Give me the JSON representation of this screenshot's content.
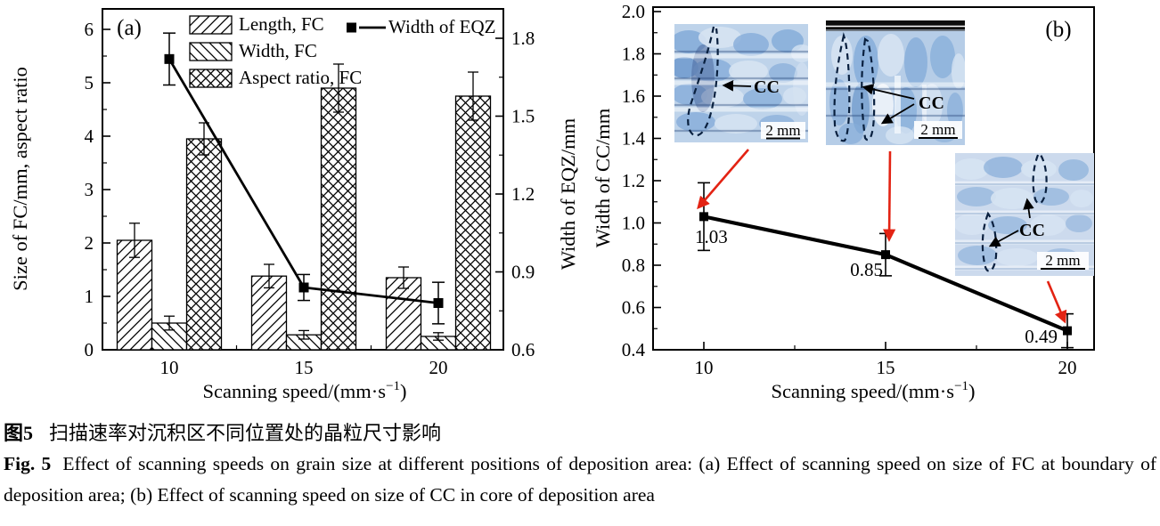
{
  "figure": {
    "caption_cn": {
      "tag": "图5",
      "text": "扫描速率对沉积区不同位置处的晶粒尺寸影响"
    },
    "caption_en": {
      "tag": "Fig. 5",
      "text": "Effect of scanning speeds on grain size at different positions of deposition area: (a) Effect of scanning speed on size of FC at boundary of deposition area; (b) Effect of scanning speed on size of CC in core of deposition area"
    }
  },
  "colors": {
    "ink": "#000000",
    "accent_red": "#e32313",
    "inset_blue_bg": "#bed3ea",
    "inset_blue_mid": "#86add9",
    "inset_blue_dark": "#5d8dc7",
    "inset_blue_light": "#d6e3f2",
    "inset_white": "#f6f9fd",
    "inset_deep": "#48639a",
    "dash_ink": "#09203f"
  },
  "chart_data": [
    {
      "id": "a",
      "panel_label": "(a)",
      "type": "bar",
      "categories": [
        10,
        15,
        20
      ],
      "xticks": [
        "10",
        "15",
        "20"
      ],
      "bar_series": [
        {
          "name": "Length, FC",
          "hatch": "diag-up",
          "values": [
            2.05,
            1.38,
            1.35
          ],
          "errors": [
            0.32,
            0.22,
            0.2
          ]
        },
        {
          "name": "Width, FC",
          "hatch": "diag-down",
          "values": [
            0.5,
            0.28,
            0.25
          ],
          "errors": [
            0.13,
            0.08,
            0.07
          ]
        },
        {
          "name": "Aspect ratio, FC",
          "hatch": "cross",
          "values": [
            3.95,
            4.9,
            4.75
          ],
          "errors": [
            0.3,
            0.45,
            0.45
          ]
        }
      ],
      "line_series": {
        "name": "Width of EQZ",
        "axis": "right",
        "values": [
          1.72,
          0.84,
          0.78
        ],
        "errors": [
          0.1,
          0.05,
          0.08
        ]
      },
      "xlabel": {
        "pre": "Scanning speed/(mm·s",
        "sup": "−1",
        "post": ")"
      },
      "ylabel_left": "Size of FC/mm, aspect ratio",
      "ylabel_right": "Width of EQZ/mm",
      "yticks_left": [
        "0",
        "1",
        "2",
        "3",
        "4",
        "5",
        "6"
      ],
      "yticks_right": [
        "0.6",
        "0.9",
        "1.2",
        "1.5",
        "1.8"
      ],
      "ylim_left": [
        0,
        6.38
      ],
      "ylim_right": [
        0.6,
        1.91
      ],
      "grid": false,
      "legend_position": "top"
    },
    {
      "id": "b",
      "panel_label": "(b)",
      "type": "line",
      "x": [
        10,
        15,
        20
      ],
      "xticks": [
        "10",
        "15",
        "20"
      ],
      "values": [
        1.03,
        0.85,
        0.49
      ],
      "errors": [
        0.16,
        0.1,
        0.08
      ],
      "point_labels": [
        "1.03",
        "0.85",
        "0.49"
      ],
      "xlabel": {
        "pre": "Scanning speed/(mm·s",
        "sup": "−1",
        "post": ")"
      },
      "ylabel": "Width of CC/mm",
      "yticks": [
        "0.4",
        "0.6",
        "0.8",
        "1.0",
        "1.2",
        "1.4",
        "1.6",
        "1.8",
        "2.0"
      ],
      "ylim": [
        0.4,
        2.0
      ],
      "grid": false,
      "insets": [
        {
          "label": "CC",
          "scale_label": "2 mm"
        },
        {
          "label": "CC",
          "scale_label": "2 mm"
        },
        {
          "label": "CC",
          "scale_label": "2 mm"
        }
      ]
    }
  ]
}
